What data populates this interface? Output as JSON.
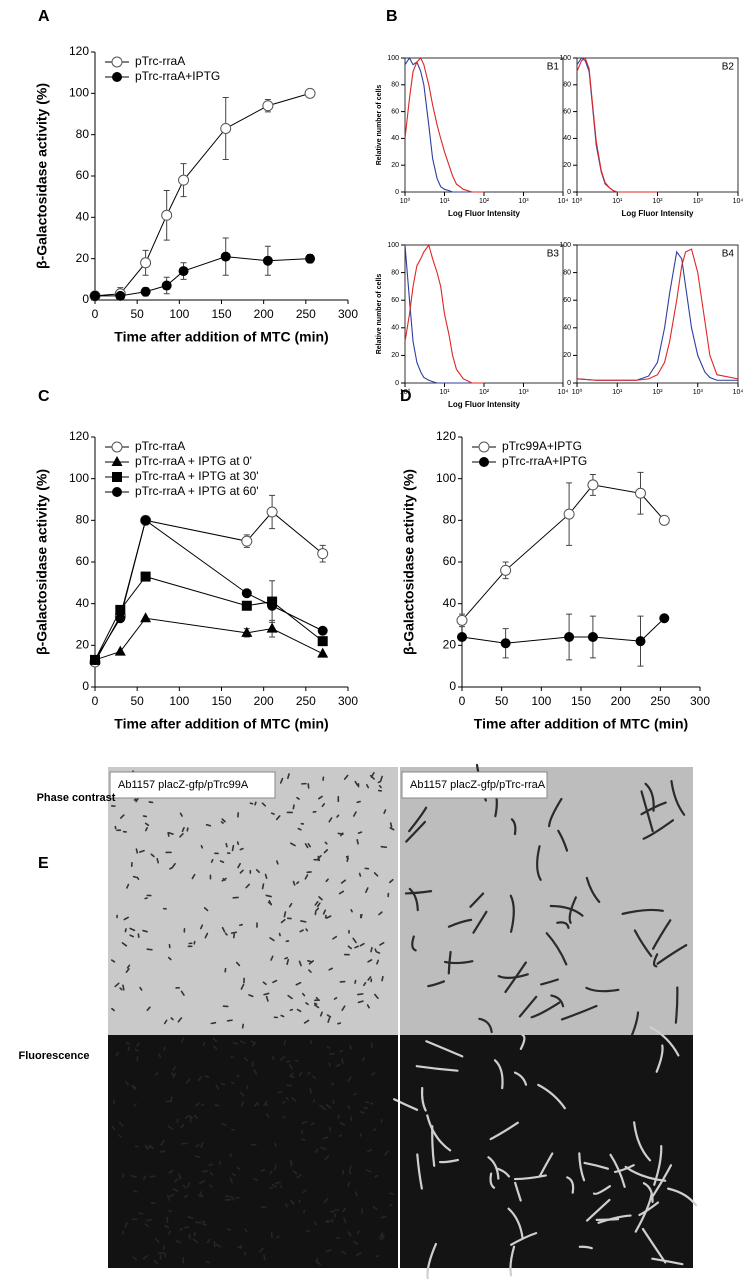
{
  "chart_data": [
    {
      "type": "line",
      "panel": "A",
      "xlabel": "Time after addition of MTC (min)",
      "ylabel": "β-Galactosidase activity (%)",
      "x": [
        0,
        30,
        60,
        85,
        105,
        155,
        205,
        255
      ],
      "xlim": [
        0,
        300
      ],
      "xticks": [
        0,
        50,
        100,
        150,
        200,
        250,
        300
      ],
      "ylim": [
        0,
        120
      ],
      "yticks": [
        0,
        20,
        40,
        60,
        80,
        100,
        120
      ],
      "legend": "upper left",
      "series": [
        {
          "name": "pTrc-rraA",
          "color": "#555555",
          "marker": "open-circle",
          "values": [
            2,
            3,
            18,
            41,
            58,
            83,
            94,
            100
          ],
          "errors": [
            1,
            3,
            6,
            12,
            8,
            15,
            3,
            1
          ]
        },
        {
          "name": "pTrc-rraA+IPTG",
          "color": "#000000",
          "marker": "circle",
          "values": [
            2,
            2,
            4,
            7,
            14,
            21,
            19,
            20
          ],
          "errors": [
            1,
            1,
            2,
            4,
            4,
            9,
            7,
            2
          ]
        }
      ]
    },
    {
      "type": "line",
      "panel": "B",
      "title": "B1",
      "xlabel": "Log Fluor Intensity",
      "ylabel": "Relative number of cells",
      "logx": true,
      "frame": true,
      "x": [
        1,
        1.3,
        1.6,
        2,
        2.5,
        3,
        4,
        5,
        6.5,
        8,
        10,
        13,
        16,
        20,
        30,
        50,
        100
      ],
      "xlim": [
        1,
        10000
      ],
      "xticks": [
        {
          "value": 1,
          "label": "10⁰"
        },
        {
          "value": 10,
          "label": "10¹"
        },
        {
          "value": 100,
          "label": "10²"
        },
        {
          "value": 1000,
          "label": "10³"
        },
        {
          "value": 10000,
          "label": "10⁴"
        }
      ],
      "ylim": [
        0,
        100
      ],
      "yticks": [
        0,
        20,
        40,
        60,
        80,
        100
      ],
      "series": [
        {
          "color": "#2b3fa0",
          "values": [
            95,
            100,
            95,
            97,
            90,
            80,
            50,
            25,
            10,
            4,
            2,
            1,
            0,
            0,
            0,
            0,
            0
          ]
        },
        {
          "color": "#e02525",
          "values": [
            40,
            70,
            90,
            97,
            100,
            95,
            80,
            65,
            50,
            40,
            30,
            20,
            12,
            6,
            2,
            0,
            0
          ]
        }
      ]
    },
    {
      "type": "line",
      "title": "B2",
      "xlabel": "Log Fluor Intensity",
      "logx": true,
      "frame": true,
      "x": [
        1,
        1.3,
        1.6,
        2,
        2.5,
        3,
        4,
        5,
        6.5,
        8,
        10,
        13,
        16,
        20,
        30,
        50,
        100
      ],
      "xlim": [
        1,
        10000
      ],
      "xticks": [
        {
          "value": 1,
          "label": "10⁰"
        },
        {
          "value": 10,
          "label": "10¹"
        },
        {
          "value": 100,
          "label": "10²"
        },
        {
          "value": 1000,
          "label": "10³"
        },
        {
          "value": 10000,
          "label": "10⁴"
        }
      ],
      "ylim": [
        0,
        100
      ],
      "yticks": [
        0,
        20,
        40,
        60,
        80,
        100
      ],
      "series": [
        {
          "color": "#2b3fa0",
          "values": [
            95,
            100,
            98,
            90,
            60,
            35,
            15,
            6,
            3,
            1,
            0,
            0,
            0,
            0,
            0,
            0,
            0
          ]
        },
        {
          "color": "#e02525",
          "values": [
            90,
            98,
            100,
            92,
            62,
            38,
            16,
            7,
            3,
            1,
            0,
            0,
            0,
            0,
            0,
            0,
            0
          ]
        }
      ]
    },
    {
      "type": "line",
      "title": "B3",
      "xlabel": "Log Fluor Intensity",
      "ylabel": "Relative number of cells",
      "logx": true,
      "frame": true,
      "x": [
        1,
        1.3,
        1.6,
        2,
        2.5,
        3,
        4,
        5,
        6.5,
        8,
        10,
        13,
        16,
        20,
        30,
        50,
        100
      ],
      "xlim": [
        1,
        10000
      ],
      "xticks": [
        {
          "value": 1,
          "label": "10⁰"
        },
        {
          "value": 10,
          "label": "10¹"
        },
        {
          "value": 100,
          "label": "10²"
        },
        {
          "value": 1000,
          "label": "10³"
        },
        {
          "value": 10000,
          "label": "10⁴"
        }
      ],
      "ylim": [
        0,
        100
      ],
      "yticks": [
        0,
        20,
        40,
        60,
        80,
        100
      ],
      "series": [
        {
          "color": "#2b3fa0",
          "values": [
            100,
            60,
            30,
            15,
            8,
            4,
            2,
            1,
            0,
            0,
            0,
            0,
            0,
            0,
            0,
            0,
            0
          ]
        },
        {
          "color": "#e02525",
          "values": [
            30,
            50,
            70,
            85,
            90,
            95,
            100,
            90,
            80,
            70,
            50,
            35,
            20,
            10,
            3,
            0,
            0
          ]
        }
      ]
    },
    {
      "type": "line",
      "title": "B4",
      "logx": true,
      "frame": true,
      "x": [
        1,
        3,
        10,
        30,
        60,
        100,
        150,
        200,
        300,
        400,
        500,
        700,
        1000,
        1500,
        2000,
        3000,
        10000
      ],
      "xlim": [
        1,
        10000
      ],
      "xticks": [
        {
          "value": 1,
          "label": "10⁰"
        },
        {
          "value": 10,
          "label": "10¹"
        },
        {
          "value": 100,
          "label": "10²"
        },
        {
          "value": 1000,
          "label": "10³"
        },
        {
          "value": 10000,
          "label": "10⁴"
        }
      ],
      "ylim": [
        0,
        100
      ],
      "yticks": [
        0,
        20,
        40,
        60,
        80,
        100
      ],
      "series": [
        {
          "color": "#2b3fa0",
          "values": [
            3,
            2,
            2,
            2,
            5,
            15,
            40,
            65,
            95,
            90,
            70,
            40,
            20,
            8,
            4,
            2,
            2
          ]
        },
        {
          "color": "#e02525",
          "values": [
            3,
            2,
            2,
            2,
            3,
            6,
            15,
            30,
            60,
            85,
            95,
            97,
            80,
            45,
            20,
            6,
            3
          ]
        }
      ]
    },
    {
      "type": "line",
      "panel": "C",
      "xlabel": "Time after addition of MTC (min)",
      "ylabel": "β-Galactosidase activity (%)",
      "x": [
        0,
        30,
        60,
        180,
        210,
        270
      ],
      "xlim": [
        0,
        300
      ],
      "xticks": [
        0,
        50,
        100,
        150,
        200,
        250,
        300
      ],
      "ylim": [
        0,
        120
      ],
      "yticks": [
        0,
        20,
        40,
        60,
        80,
        100,
        120
      ],
      "legend": "upper left",
      "series": [
        {
          "name": "pTrc-rraA",
          "color": "#555555",
          "marker": "open-circle",
          "values": [
            12,
            34,
            80,
            70,
            84,
            64
          ],
          "errors": [
            0,
            0,
            0,
            3,
            8,
            4
          ]
        },
        {
          "name": "pTrc-rraA + IPTG at 0'",
          "color": "#000000",
          "marker": "triangle",
          "values": [
            13,
            17,
            33,
            26,
            28,
            16
          ],
          "errors": [
            0,
            0,
            0,
            2,
            4,
            0
          ]
        },
        {
          "name": "pTrc-rraA + IPTG at 30'",
          "color": "#000000",
          "marker": "square",
          "values": [
            13,
            37,
            53,
            39,
            41,
            22
          ],
          "errors": [
            0,
            0,
            0,
            2,
            10,
            0
          ]
        },
        {
          "name": "pTrc-rraA + IPTG at 60'",
          "color": "#000000",
          "marker": "circle",
          "values": [
            13,
            33,
            80,
            45,
            39,
            27
          ],
          "errors": [
            0,
            0,
            0,
            0,
            0,
            0
          ]
        }
      ]
    },
    {
      "type": "line",
      "panel": "D",
      "xlabel": "Time after addition of MTC (min)",
      "ylabel": "β-Galactosidase activity (%)",
      "x": [
        0,
        55,
        135,
        165,
        225,
        255
      ],
      "xlim": [
        0,
        300
      ],
      "xticks": [
        0,
        50,
        100,
        150,
        200,
        250,
        300
      ],
      "ylim": [
        0,
        120
      ],
      "yticks": [
        0,
        20,
        40,
        60,
        80,
        100,
        120
      ],
      "legend": "upper left",
      "series": [
        {
          "name": "pTrc99A+IPTG",
          "color": "#555555",
          "marker": "open-circle",
          "values": [
            32,
            56,
            83,
            97,
            93,
            80
          ],
          "errors": [
            3,
            4,
            15,
            5,
            10,
            1
          ]
        },
        {
          "name": "pTrc-rraA+IPTG",
          "color": "#000000",
          "marker": "circle",
          "values": [
            24,
            21,
            24,
            24,
            22,
            33
          ],
          "errors": [
            1,
            7,
            11,
            10,
            12,
            1
          ]
        }
      ]
    }
  ],
  "microscopy": {
    "panel": "E",
    "columns": [
      "Ab1157 placZ-gfp/pTrc99A",
      "Ab1157 placZ-gfp/pTrc-rraA"
    ],
    "rows": [
      "Phase contrast",
      "Fluorescence"
    ]
  }
}
